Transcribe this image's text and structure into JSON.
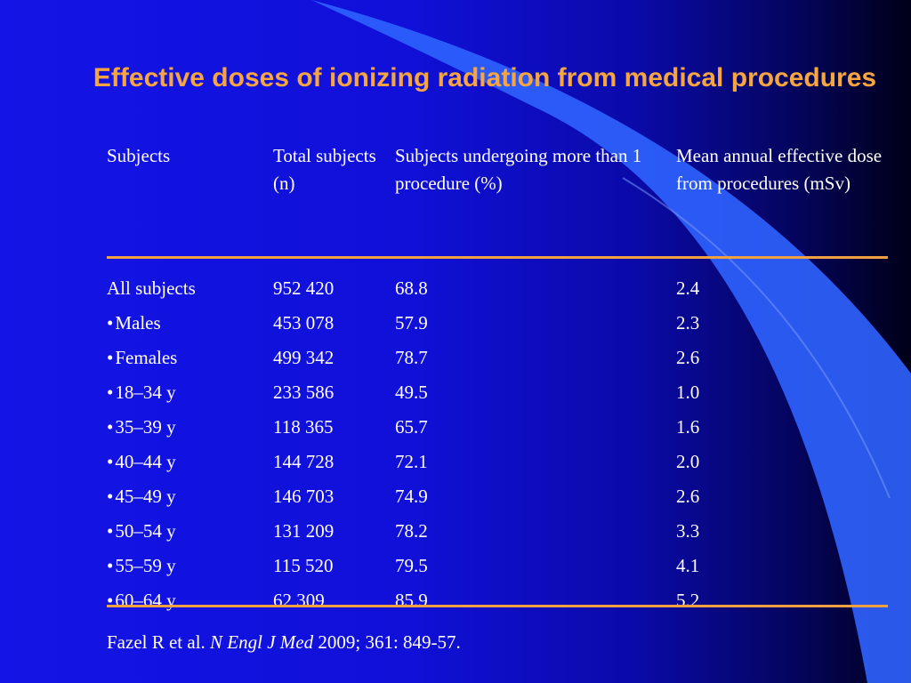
{
  "title": "Effective doses of ionizing radiation from medical procedures",
  "table": {
    "headers": [
      "Subjects",
      "Total subjects (n)",
      "Subjects undergoing more than 1 procedure (%)",
      "Mean annual effective dose from procedures (mSv)"
    ],
    "rows": [
      {
        "subject": "All subjects",
        "bullet": false,
        "total": "952 420",
        "pct": "68.8",
        "dose": "2.4"
      },
      {
        "subject": "Males",
        "bullet": true,
        "total": "453 078",
        "pct": "57.9",
        "dose": "2.3"
      },
      {
        "subject": "Females",
        "bullet": true,
        "total": "499 342",
        "pct": "78.7",
        "dose": "2.6"
      },
      {
        "subject": "18–34 y",
        "bullet": true,
        "total": "233 586",
        "pct": "49.5",
        "dose": "1.0"
      },
      {
        "subject": "35–39 y",
        "bullet": true,
        "total": "118 365",
        "pct": "65.7",
        "dose": "1.6"
      },
      {
        "subject": "40–44 y",
        "bullet": true,
        "total": "144 728",
        "pct": "72.1",
        "dose": "2.0"
      },
      {
        "subject": "45–49 y",
        "bullet": true,
        "total": "146 703",
        "pct": "74.9",
        "dose": "2.6"
      },
      {
        "subject": "50–54 y",
        "bullet": true,
        "total": "131 209",
        "pct": "78.2",
        "dose": "3.3"
      },
      {
        "subject": "55–59 y",
        "bullet": true,
        "total": "115 520",
        "pct": "79.5",
        "dose": "4.1"
      },
      {
        "subject": "60–64 y",
        "bullet": true,
        "total": "62 309",
        "pct": "85.9",
        "dose": "5.2"
      }
    ]
  },
  "citation": {
    "authors": "Fazel R et al. ",
    "journal": "N Engl J Med",
    "rest": " 2009; 361: 849-57."
  },
  "colors": {
    "title": "#f7a541",
    "rule": "#f0a040",
    "text": "#ffffff",
    "background_left": "#1414e6",
    "background_right": "#000018",
    "swoosh": "#2f63ff"
  }
}
